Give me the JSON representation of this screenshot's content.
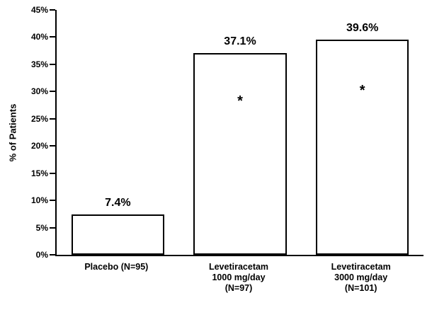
{
  "chart_data": {
    "type": "bar",
    "title": "",
    "xlabel": "",
    "ylabel": "% of Patients",
    "ylim": [
      0,
      45
    ],
    "ytick_step": 5,
    "ytick_suffix": "%",
    "grid": false,
    "legend": false,
    "categories": [
      "Placebo (N=95)",
      "Levetiracetam\n1000 mg/day\n(N=97)",
      "Levetiracetam\n3000 mg/day\n(N=101)"
    ],
    "values": [
      7.4,
      37.1,
      39.6
    ],
    "value_labels": [
      "7.4%",
      "37.1%",
      "39.6%"
    ],
    "annotations": [
      "",
      "*",
      "*"
    ],
    "bar_fill": "#ffffff",
    "bar_border": "#000000",
    "text_color": "#000000",
    "background_color": "#ffffff"
  }
}
